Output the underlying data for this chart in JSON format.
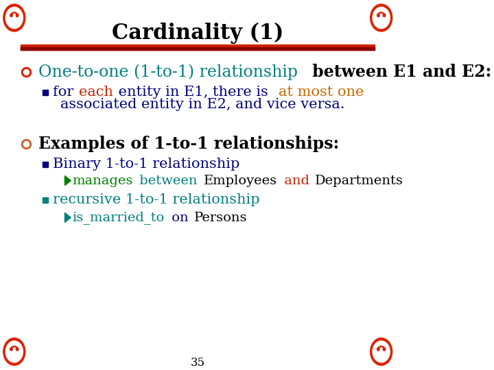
{
  "title": "Cardinality (1)",
  "title_color": "#000000",
  "title_fontsize": 22,
  "background_color": "#ffffff",
  "divider_colors": [
    "#cc2200",
    "#8b0000"
  ],
  "page_number": "35",
  "icon_color": "#dd2200",
  "bullet1_marker_color": "#dd2200",
  "bullet1_parts": [
    {
      "text": "One-to-one (1-to-1) relationship",
      "color": "#008080",
      "bold": false
    },
    {
      "text": " between E",
      "color": "#000000",
      "bold": true
    },
    {
      "text": "1",
      "color": "#000000",
      "bold": true
    },
    {
      "text": " and E",
      "color": "#000000",
      "bold": true
    },
    {
      "text": "2",
      "color": "#000000",
      "bold": true
    },
    {
      "text": ":",
      "color": "#000000",
      "bold": true
    }
  ],
  "bullet1_fontsize": 17,
  "sub1_parts_line1": [
    {
      "text": "for ",
      "color": "#000080"
    },
    {
      "text": "each",
      "color": "#cc2200"
    },
    {
      "text": " entity in E1, there is ",
      "color": "#000080"
    },
    {
      "text": "at most one",
      "color": "#cc6600"
    }
  ],
  "sub1_parts_line2": [
    {
      "text": "associated entity in E2, and vice versa.",
      "color": "#000080"
    }
  ],
  "sub1_fontsize": 15,
  "bullet2_text": "Examples of 1-to-1 relationships:",
  "bullet2_color": "#000000",
  "bullet2_fontsize": 17,
  "sub2a_text": "Binary 1-to-1 relationship",
  "sub2a_color": "#000080",
  "sub2a_fontsize": 15,
  "arrow1_parts": [
    {
      "text": "manages",
      "color": "#008000"
    },
    {
      "text": " between ",
      "color": "#008080"
    },
    {
      "text": "Employees",
      "color": "#000000"
    },
    {
      "text": " and ",
      "color": "#cc2200"
    },
    {
      "text": "Departments",
      "color": "#000000"
    }
  ],
  "arrow1_fontsize": 14,
  "sub2b_text": "recursive 1-to-1 relationship",
  "sub2b_color": "#008080",
  "sub2b_fontsize": 15,
  "arrow2_parts": [
    {
      "text": "is_married_to",
      "color": "#008080"
    },
    {
      "text": " on ",
      "color": "#000080"
    },
    {
      "text": "Persons",
      "color": "#000000"
    }
  ],
  "arrow2_fontsize": 14
}
